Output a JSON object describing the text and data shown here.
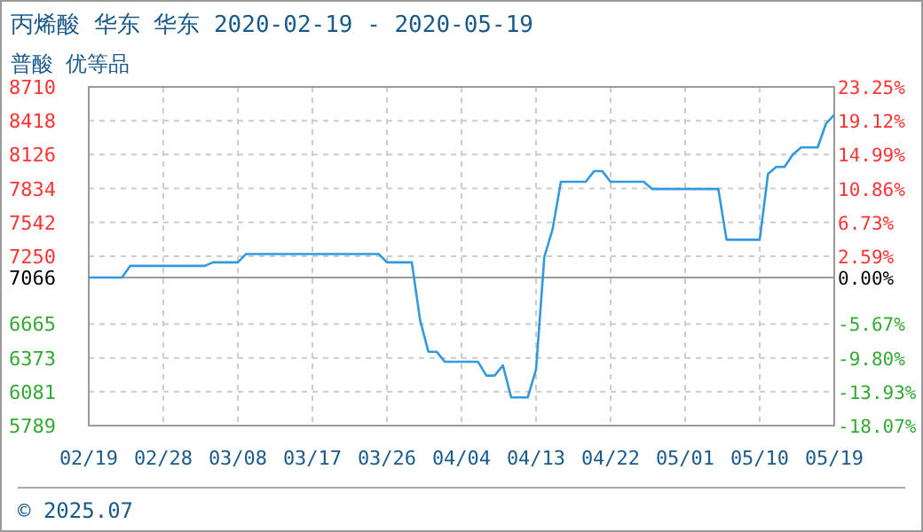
{
  "chart_data": {
    "type": "line",
    "title": "丙烯酸 华东 华东 2020-02-19 - 2020-05-19",
    "subtitle": "普酸 优等品",
    "annotations": [
      "© 2025.07"
    ],
    "x": [
      "2020-02-19",
      "2020-02-23",
      "2020-02-24",
      "2020-03-04",
      "2020-03-05",
      "2020-03-08",
      "2020-03-09",
      "2020-03-25",
      "2020-03-26",
      "2020-03-29",
      "2020-03-30",
      "2020-03-31",
      "2020-04-01",
      "2020-04-02",
      "2020-04-06",
      "2020-04-07",
      "2020-04-08",
      "2020-04-09",
      "2020-04-10",
      "2020-04-12",
      "2020-04-13",
      "2020-04-14",
      "2020-04-15",
      "2020-04-16",
      "2020-04-19",
      "2020-04-20",
      "2020-04-21",
      "2020-04-22",
      "2020-04-26",
      "2020-04-27",
      "2020-05-05",
      "2020-05-06",
      "2020-05-10",
      "2020-05-11",
      "2020-05-12",
      "2020-05-13",
      "2020-05-14",
      "2020-05-15",
      "2020-05-17",
      "2020-05-18",
      "2020-05-19"
    ],
    "series": [
      {
        "color": "#3399dd",
        "values": [
          7066,
          7066,
          7166,
          7166,
          7197,
          7197,
          7269,
          7269,
          7197,
          7197,
          6700,
          6426,
          6426,
          6339,
          6339,
          6220,
          6220,
          6308,
          6032,
          6032,
          6273,
          7243,
          7484,
          7892,
          7892,
          7983,
          7983,
          7892,
          7892,
          7830,
          7830,
          7392,
          7392,
          7958,
          8020,
          8020,
          8127,
          8188,
          8188,
          8393,
          8469
        ]
      }
    ],
    "xlim": [
      "2020-02-19",
      "2020-05-19"
    ],
    "xticks": [
      {
        "value": "2020-02-19",
        "label": "02/19"
      },
      {
        "value": "2020-02-28",
        "label": "02/28"
      },
      {
        "value": "2020-03-08",
        "label": "03/08"
      },
      {
        "value": "2020-03-17",
        "label": "03/17"
      },
      {
        "value": "2020-03-26",
        "label": "03/26"
      },
      {
        "value": "2020-04-04",
        "label": "04/04"
      },
      {
        "value": "2020-04-13",
        "label": "04/13"
      },
      {
        "value": "2020-04-22",
        "label": "04/22"
      },
      {
        "value": "2020-05-01",
        "label": "05/01"
      },
      {
        "value": "2020-05-10",
        "label": "05/10"
      },
      {
        "value": "2020-05-19",
        "label": "05/19"
      }
    ],
    "ylim": [
      5789,
      8710
    ],
    "yticks": [
      5789,
      6081,
      6373,
      6665,
      7066,
      7250,
      7542,
      7834,
      8126,
      8418,
      8710
    ],
    "y2lim": [
      -18.07,
      23.25
    ],
    "y2ticks": [
      {
        "value": -18.07,
        "label": "-18.07%"
      },
      {
        "value": -13.93,
        "label": "-13.93%"
      },
      {
        "value": -9.8,
        "label": "-9.80%"
      },
      {
        "value": -5.67,
        "label": "-5.67%"
      },
      {
        "value": 0,
        "label": "0.00%"
      },
      {
        "value": 2.59,
        "label": "2.59%"
      },
      {
        "value": 6.73,
        "label": "6.73%"
      },
      {
        "value": 10.86,
        "label": "10.86%"
      },
      {
        "value": 14.99,
        "label": "14.99%"
      },
      {
        "value": 19.12,
        "label": "19.12%"
      },
      {
        "value": 23.25,
        "label": "23.25%"
      }
    ],
    "ref_lines": [
      {
        "axis": "y",
        "value": 7066,
        "color": "#999999",
        "line_style": "solid"
      }
    ],
    "grid": true,
    "marker": "none",
    "line_style": "solid"
  }
}
